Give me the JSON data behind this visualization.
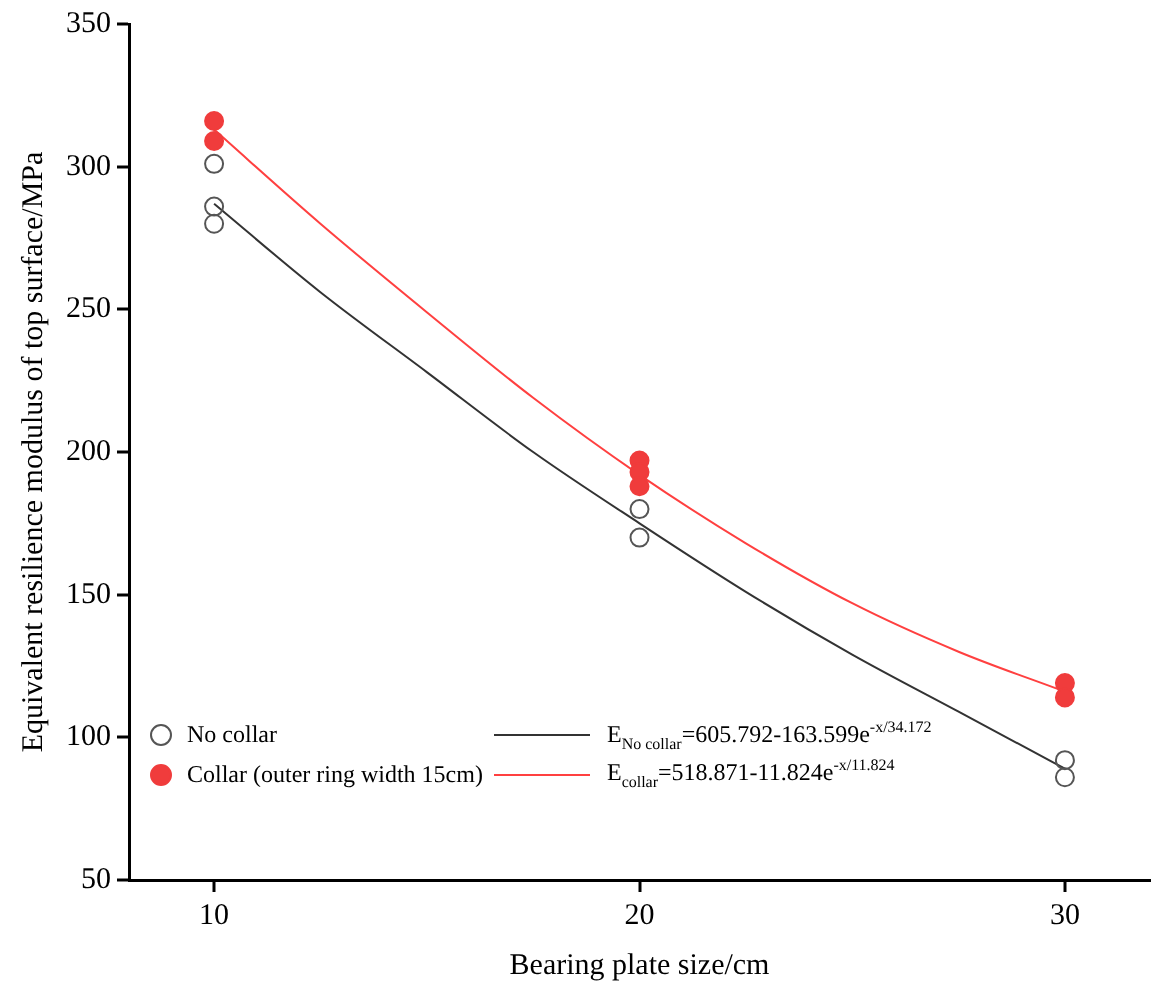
{
  "chart_data": {
    "type": "scatter",
    "xlabel": "Bearing plate size/cm",
    "ylabel": "Equivalent resilience modulus of top surface/MPa",
    "xlim": [
      8,
      32
    ],
    "xticks": [
      10,
      20,
      30
    ],
    "ylim": [
      50,
      350
    ],
    "yticks": [
      50,
      100,
      150,
      200,
      250,
      300,
      350
    ],
    "grid": false,
    "legend": "bottom left",
    "series": [
      {
        "name": "No collar",
        "marker": "circle",
        "color": "#555555",
        "x": [
          10,
          10,
          10,
          20,
          20,
          30,
          30
        ],
        "values": [
          301,
          286,
          280,
          180,
          170,
          92,
          86
        ]
      },
      {
        "name": "Collar (outer ring width 15cm)",
        "marker": "circle",
        "color": "#f03c3c",
        "x": [
          10,
          10,
          20,
          20,
          20,
          30,
          30
        ],
        "values": [
          316,
          309,
          197,
          193,
          188,
          119,
          114
        ]
      },
      {
        "name": "E$_{No collar}$=605.792-163.599e$^{-x/34.172}$",
        "type": "line",
        "marker": "none",
        "line_style": "solid",
        "color": "#333333",
        "x": [
          10,
          12.5,
          15,
          17.5,
          20,
          22.5,
          25,
          27.5,
          30
        ],
        "values": [
          287,
          256,
          228,
          200,
          175,
          151,
          129,
          109,
          89
        ]
      },
      {
        "name": "E$_{collar}$=518.871-11.824e$^{-x/11.824}$",
        "type": "line",
        "marker": "none",
        "line_style": "solid",
        "color": "#ff4040",
        "x": [
          10,
          12.5,
          15,
          17.5,
          20,
          22.5,
          25,
          27.5,
          30
        ],
        "values": [
          313,
          280,
          249,
          219,
          192,
          168,
          147,
          130,
          116
        ]
      }
    ]
  }
}
